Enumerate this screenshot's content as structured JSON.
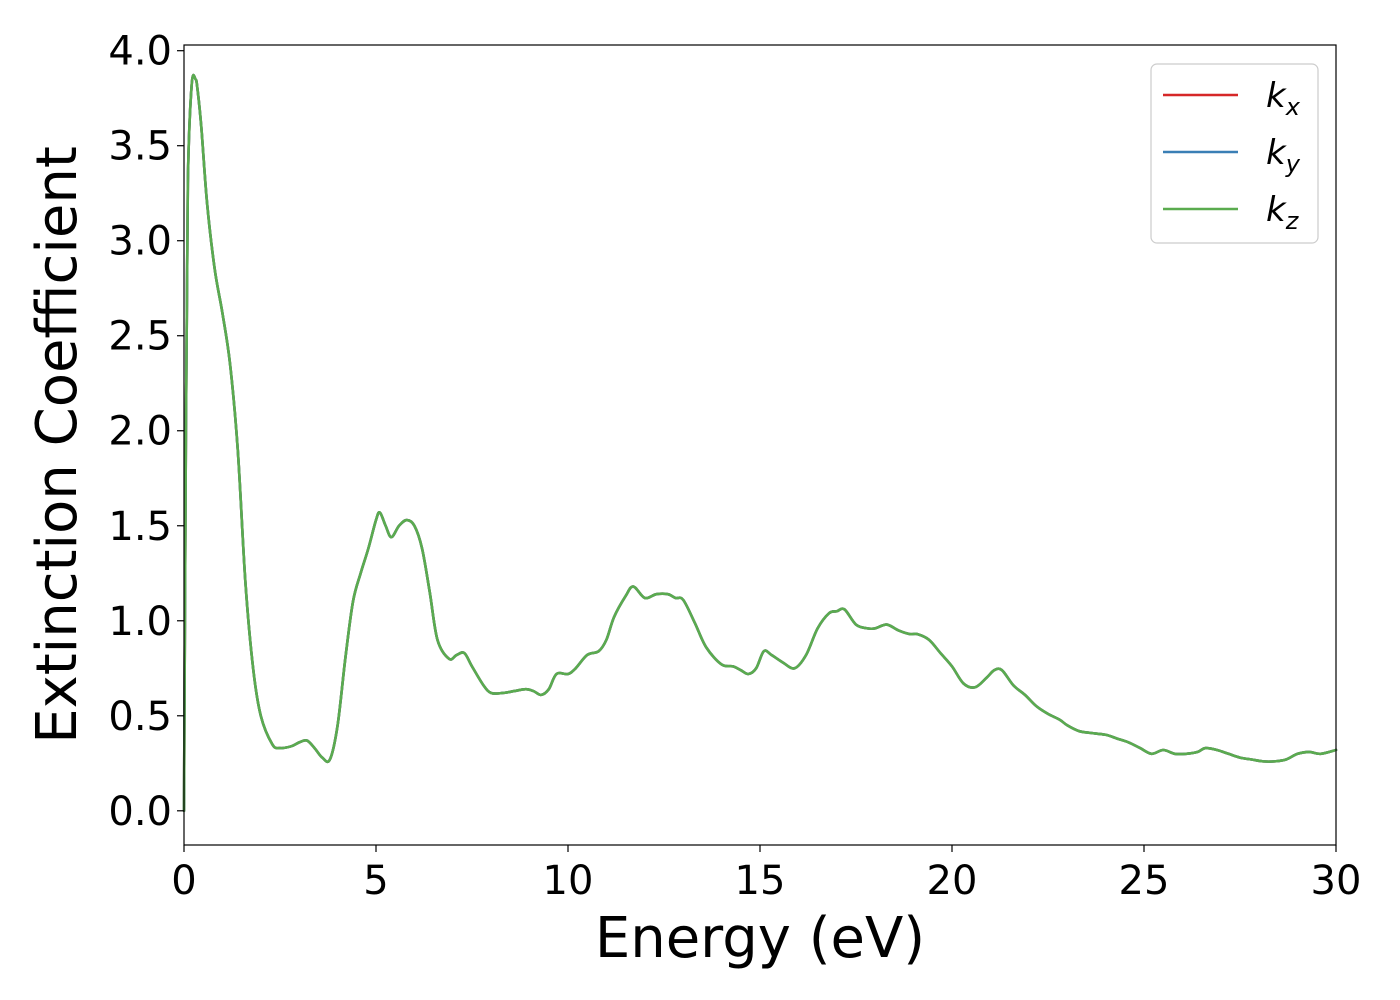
{
  "chart_data": {
    "type": "line",
    "xlabel": "Energy (eV)",
    "ylabel": "Extinction Coefficient",
    "xlim": [
      0,
      30
    ],
    "ylim": [
      -0.18,
      4.03
    ],
    "xticks": [
      0,
      5,
      10,
      15,
      20,
      25,
      30
    ],
    "yticks": [
      0.0,
      0.5,
      1.0,
      1.5,
      2.0,
      2.5,
      3.0,
      3.5,
      4.0
    ],
    "xtick_labels": [
      "0",
      "5",
      "10",
      "15",
      "20",
      "25",
      "30"
    ],
    "ytick_labels": [
      "0.0",
      "0.5",
      "1.0",
      "1.5",
      "2.0",
      "2.5",
      "3.0",
      "3.5",
      "4.0"
    ],
    "grid": false,
    "legend": {
      "location": "top-right",
      "entries": [
        {
          "base": "k",
          "sub": "x",
          "color": "#d62728"
        },
        {
          "base": "k",
          "sub": "y",
          "color": "#3a7fb5"
        },
        {
          "base": "k",
          "sub": "z",
          "color": "#5aab4f"
        }
      ]
    },
    "series": [
      {
        "name": "k_x",
        "color": "#d62728",
        "x": [
          0.0,
          0.05,
          0.1,
          0.2,
          0.3,
          0.35,
          0.45,
          0.6,
          0.8,
          1.0,
          1.2,
          1.4,
          1.6,
          1.8,
          2.0,
          2.3,
          2.5,
          2.8,
          3.0,
          3.2,
          3.4,
          3.6,
          3.8,
          4.0,
          4.2,
          4.4,
          4.6,
          4.8,
          5.0,
          5.1,
          5.25,
          5.4,
          5.6,
          5.8,
          6.0,
          6.2,
          6.4,
          6.6,
          6.9,
          7.1,
          7.3,
          7.5,
          7.8,
          8.0,
          8.3,
          8.6,
          8.9,
          9.1,
          9.3,
          9.5,
          9.7,
          10.0,
          10.2,
          10.5,
          10.8,
          11.0,
          11.2,
          11.5,
          11.7,
          12.0,
          12.3,
          12.6,
          12.8,
          13.0,
          13.3,
          13.6,
          14.0,
          14.3,
          14.5,
          14.7,
          14.9,
          15.1,
          15.3,
          15.6,
          15.9,
          16.2,
          16.5,
          16.8,
          17.0,
          17.2,
          17.5,
          17.8,
          18.0,
          18.3,
          18.6,
          18.9,
          19.1,
          19.4,
          19.7,
          20.0,
          20.3,
          20.6,
          20.9,
          21.1,
          21.3,
          21.6,
          21.9,
          22.2,
          22.5,
          22.8,
          23.0,
          23.3,
          23.6,
          24.0,
          24.3,
          24.6,
          24.9,
          25.2,
          25.5,
          25.8,
          26.1,
          26.4,
          26.6,
          26.9,
          27.2,
          27.5,
          27.8,
          28.1,
          28.4,
          28.7,
          29.0,
          29.3,
          29.6,
          30.0
        ],
        "values": [
          0.0,
          2.0,
          3.3,
          3.82,
          3.85,
          3.8,
          3.6,
          3.2,
          2.85,
          2.62,
          2.35,
          1.9,
          1.2,
          0.75,
          0.5,
          0.35,
          0.33,
          0.34,
          0.36,
          0.37,
          0.33,
          0.28,
          0.27,
          0.45,
          0.8,
          1.1,
          1.25,
          1.38,
          1.53,
          1.57,
          1.5,
          1.44,
          1.5,
          1.53,
          1.5,
          1.38,
          1.15,
          0.9,
          0.8,
          0.82,
          0.83,
          0.76,
          0.66,
          0.62,
          0.62,
          0.63,
          0.64,
          0.63,
          0.61,
          0.64,
          0.72,
          0.72,
          0.75,
          0.82,
          0.84,
          0.9,
          1.02,
          1.13,
          1.18,
          1.12,
          1.14,
          1.14,
          1.12,
          1.11,
          0.99,
          0.86,
          0.77,
          0.76,
          0.74,
          0.72,
          0.75,
          0.84,
          0.82,
          0.78,
          0.75,
          0.82,
          0.96,
          1.04,
          1.05,
          1.06,
          0.98,
          0.96,
          0.96,
          0.98,
          0.95,
          0.93,
          0.93,
          0.9,
          0.83,
          0.76,
          0.67,
          0.65,
          0.7,
          0.74,
          0.74,
          0.66,
          0.61,
          0.55,
          0.51,
          0.48,
          0.45,
          0.42,
          0.41,
          0.4,
          0.38,
          0.36,
          0.33,
          0.3,
          0.32,
          0.3,
          0.3,
          0.31,
          0.33,
          0.32,
          0.3,
          0.28,
          0.27,
          0.26,
          0.26,
          0.27,
          0.3,
          0.31,
          0.3,
          0.32
        ]
      },
      {
        "name": "k_y",
        "color": "#3a7fb5",
        "x": [
          0.0,
          0.05,
          0.1,
          0.2,
          0.3,
          0.35,
          0.45,
          0.6,
          0.8,
          1.0,
          1.2,
          1.4,
          1.6,
          1.8,
          2.0,
          2.3,
          2.5,
          2.8,
          3.0,
          3.2,
          3.4,
          3.6,
          3.8,
          4.0,
          4.2,
          4.4,
          4.6,
          4.8,
          5.0,
          5.1,
          5.25,
          5.4,
          5.6,
          5.8,
          6.0,
          6.2,
          6.4,
          6.6,
          6.9,
          7.1,
          7.3,
          7.5,
          7.8,
          8.0,
          8.3,
          8.6,
          8.9,
          9.1,
          9.3,
          9.5,
          9.7,
          10.0,
          10.2,
          10.5,
          10.8,
          11.0,
          11.2,
          11.5,
          11.7,
          12.0,
          12.3,
          12.6,
          12.8,
          13.0,
          13.3,
          13.6,
          14.0,
          14.3,
          14.5,
          14.7,
          14.9,
          15.1,
          15.3,
          15.6,
          15.9,
          16.2,
          16.5,
          16.8,
          17.0,
          17.2,
          17.5,
          17.8,
          18.0,
          18.3,
          18.6,
          18.9,
          19.1,
          19.4,
          19.7,
          20.0,
          20.3,
          20.6,
          20.9,
          21.1,
          21.3,
          21.6,
          21.9,
          22.2,
          22.5,
          22.8,
          23.0,
          23.3,
          23.6,
          24.0,
          24.3,
          24.6,
          24.9,
          25.2,
          25.5,
          25.8,
          26.1,
          26.4,
          26.6,
          26.9,
          27.2,
          27.5,
          27.8,
          28.1,
          28.4,
          28.7,
          29.0,
          29.3,
          29.6,
          30.0
        ],
        "values": [
          0.0,
          2.0,
          3.3,
          3.82,
          3.85,
          3.8,
          3.6,
          3.2,
          2.85,
          2.62,
          2.35,
          1.9,
          1.2,
          0.75,
          0.5,
          0.35,
          0.33,
          0.34,
          0.36,
          0.37,
          0.33,
          0.28,
          0.27,
          0.45,
          0.8,
          1.1,
          1.25,
          1.38,
          1.53,
          1.57,
          1.5,
          1.44,
          1.5,
          1.53,
          1.5,
          1.38,
          1.15,
          0.9,
          0.8,
          0.82,
          0.83,
          0.76,
          0.66,
          0.62,
          0.62,
          0.63,
          0.64,
          0.63,
          0.61,
          0.64,
          0.72,
          0.72,
          0.75,
          0.82,
          0.84,
          0.9,
          1.02,
          1.13,
          1.18,
          1.12,
          1.14,
          1.14,
          1.12,
          1.11,
          0.99,
          0.86,
          0.77,
          0.76,
          0.74,
          0.72,
          0.75,
          0.84,
          0.82,
          0.78,
          0.75,
          0.82,
          0.96,
          1.04,
          1.05,
          1.06,
          0.98,
          0.96,
          0.96,
          0.98,
          0.95,
          0.93,
          0.93,
          0.9,
          0.83,
          0.76,
          0.67,
          0.65,
          0.7,
          0.74,
          0.74,
          0.66,
          0.61,
          0.55,
          0.51,
          0.48,
          0.45,
          0.42,
          0.41,
          0.4,
          0.38,
          0.36,
          0.33,
          0.3,
          0.32,
          0.3,
          0.3,
          0.31,
          0.33,
          0.32,
          0.3,
          0.28,
          0.27,
          0.26,
          0.26,
          0.27,
          0.3,
          0.31,
          0.3,
          0.32
        ]
      },
      {
        "name": "k_z",
        "color": "#5aab4f",
        "x": [
          0.0,
          0.05,
          0.1,
          0.2,
          0.3,
          0.35,
          0.45,
          0.6,
          0.8,
          1.0,
          1.2,
          1.4,
          1.6,
          1.8,
          2.0,
          2.3,
          2.5,
          2.8,
          3.0,
          3.2,
          3.4,
          3.6,
          3.8,
          4.0,
          4.2,
          4.4,
          4.6,
          4.8,
          5.0,
          5.1,
          5.25,
          5.4,
          5.6,
          5.8,
          6.0,
          6.2,
          6.4,
          6.6,
          6.9,
          7.1,
          7.3,
          7.5,
          7.8,
          8.0,
          8.3,
          8.6,
          8.9,
          9.1,
          9.3,
          9.5,
          9.7,
          10.0,
          10.2,
          10.5,
          10.8,
          11.0,
          11.2,
          11.5,
          11.7,
          12.0,
          12.3,
          12.6,
          12.8,
          13.0,
          13.3,
          13.6,
          14.0,
          14.3,
          14.5,
          14.7,
          14.9,
          15.1,
          15.3,
          15.6,
          15.9,
          16.2,
          16.5,
          16.8,
          17.0,
          17.2,
          17.5,
          17.8,
          18.0,
          18.3,
          18.6,
          18.9,
          19.1,
          19.4,
          19.7,
          20.0,
          20.3,
          20.6,
          20.9,
          21.1,
          21.3,
          21.6,
          21.9,
          22.2,
          22.5,
          22.8,
          23.0,
          23.3,
          23.6,
          24.0,
          24.3,
          24.6,
          24.9,
          25.2,
          25.5,
          25.8,
          26.1,
          26.4,
          26.6,
          26.9,
          27.2,
          27.5,
          27.8,
          28.1,
          28.4,
          28.7,
          29.0,
          29.3,
          29.6,
          30.0
        ],
        "values": [
          0.0,
          2.0,
          3.3,
          3.82,
          3.85,
          3.8,
          3.6,
          3.2,
          2.85,
          2.62,
          2.35,
          1.9,
          1.2,
          0.75,
          0.5,
          0.35,
          0.33,
          0.34,
          0.36,
          0.37,
          0.33,
          0.28,
          0.27,
          0.45,
          0.8,
          1.1,
          1.25,
          1.38,
          1.53,
          1.57,
          1.5,
          1.44,
          1.5,
          1.53,
          1.5,
          1.38,
          1.15,
          0.9,
          0.8,
          0.82,
          0.83,
          0.76,
          0.66,
          0.62,
          0.62,
          0.63,
          0.64,
          0.63,
          0.61,
          0.64,
          0.72,
          0.72,
          0.75,
          0.82,
          0.84,
          0.9,
          1.02,
          1.13,
          1.18,
          1.12,
          1.14,
          1.14,
          1.12,
          1.11,
          0.99,
          0.86,
          0.77,
          0.76,
          0.74,
          0.72,
          0.75,
          0.84,
          0.82,
          0.78,
          0.75,
          0.82,
          0.96,
          1.04,
          1.05,
          1.06,
          0.98,
          0.96,
          0.96,
          0.98,
          0.95,
          0.93,
          0.93,
          0.9,
          0.83,
          0.76,
          0.67,
          0.65,
          0.7,
          0.74,
          0.74,
          0.66,
          0.61,
          0.55,
          0.51,
          0.48,
          0.45,
          0.42,
          0.41,
          0.4,
          0.38,
          0.36,
          0.33,
          0.3,
          0.32,
          0.3,
          0.3,
          0.31,
          0.33,
          0.32,
          0.3,
          0.28,
          0.27,
          0.26,
          0.26,
          0.27,
          0.3,
          0.31,
          0.3,
          0.32
        ]
      }
    ]
  }
}
